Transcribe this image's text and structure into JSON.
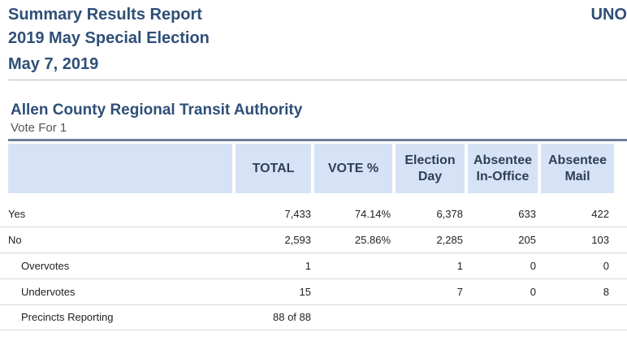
{
  "report": {
    "title": "Summary Results Report",
    "election": "2019 May Special Election",
    "date": "May 7, 2019",
    "tag": "UNO"
  },
  "contest": {
    "name": "Allen County Regional Transit Authority",
    "vote_for": "Vote For 1"
  },
  "columns": [
    "",
    "TOTAL",
    "VOTE %",
    "Election Day",
    "Absentee In-Office",
    "Absentee Mail"
  ],
  "rows": [
    {
      "label": "Yes",
      "total": "7,433",
      "pct": "74.14%",
      "eday": "6,378",
      "inoffice": "633",
      "mail": "422"
    },
    {
      "label": "No",
      "total": "2,593",
      "pct": "25.86%",
      "eday": "2,285",
      "inoffice": "205",
      "mail": "103"
    },
    {
      "label": "Overvotes",
      "total": "1",
      "pct": "",
      "eday": "1",
      "inoffice": "0",
      "mail": "0"
    },
    {
      "label": "Undervotes",
      "total": "15",
      "pct": "",
      "eday": "7",
      "inoffice": "0",
      "mail": "8"
    },
    {
      "label": "Precincts Reporting",
      "total": "88 of 88",
      "pct": "",
      "eday": "",
      "inoffice": "",
      "mail": ""
    }
  ]
}
